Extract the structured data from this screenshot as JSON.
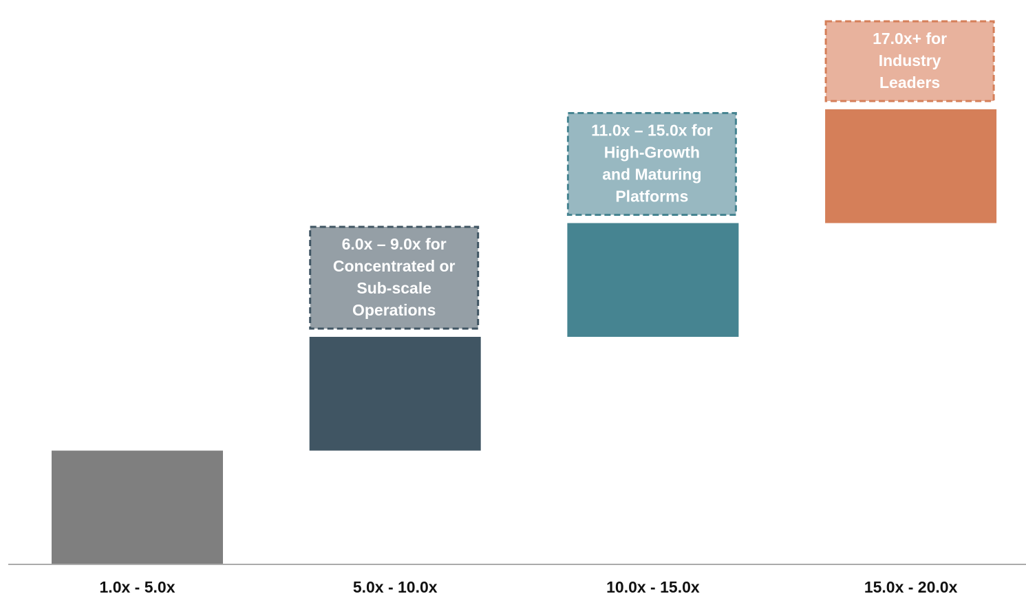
{
  "chart_data": {
    "type": "bar",
    "categories": [
      "1.0x - 5.0x",
      "5.0x - 10.0x",
      "10.0x - 15.0x",
      "15.0x - 20.0x"
    ],
    "bars": [
      {
        "low": 0,
        "high": 1,
        "color": "#7f7f7f"
      },
      {
        "low": 1,
        "high": 2,
        "color": "#405563"
      },
      {
        "low": 2,
        "high": 3,
        "color": "#468491"
      },
      {
        "low": 3,
        "high": 4,
        "color": "#d57f59"
      }
    ],
    "callouts": [
      null,
      {
        "lines": [
          "6.0x – 9.0x for",
          "Concentrated or",
          "Sub-scale",
          "Operations"
        ],
        "fill": "#959fa6",
        "border": "#405563"
      },
      {
        "lines": [
          "11.0x – 15.0x for",
          "High-Growth",
          "and Maturing",
          "Platforms"
        ],
        "fill": "#98b8c1",
        "border": "#468491"
      },
      {
        "lines": [
          "17.0x+ for",
          "Industry",
          "Leaders"
        ],
        "fill": "#e8b29d",
        "border": "#d57f59"
      }
    ],
    "axis_color": "#aaaaaa",
    "grid": false,
    "legend": "none"
  }
}
